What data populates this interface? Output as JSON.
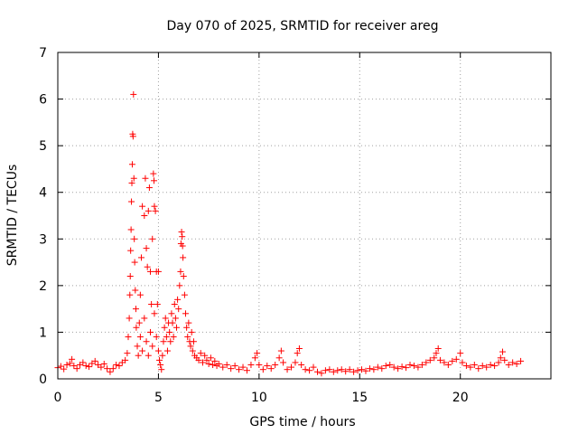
{
  "chart_data": {
    "type": "scatter",
    "title": "Day 070 of 2025, SRMTID for receiver areg",
    "xlabel": "GPS time / hours",
    "ylabel": "SRMTID / TECUs",
    "xlim": [
      0,
      24.5
    ],
    "ylim": [
      0,
      7
    ],
    "x_ticks": [
      0,
      5,
      10,
      15,
      20
    ],
    "y_ticks": [
      0,
      1,
      2,
      3,
      4,
      5,
      6,
      7
    ],
    "grid": true,
    "marker": "+",
    "series": [
      {
        "name": "SRMTID",
        "color": "#ff0000",
        "points": [
          [
            0.0,
            0.24
          ],
          [
            0.15,
            0.27
          ],
          [
            0.3,
            0.21
          ],
          [
            0.45,
            0.3
          ],
          [
            0.6,
            0.33
          ],
          [
            0.7,
            0.42
          ],
          [
            0.8,
            0.28
          ],
          [
            0.95,
            0.22
          ],
          [
            1.1,
            0.3
          ],
          [
            1.25,
            0.35
          ],
          [
            1.4,
            0.28
          ],
          [
            1.55,
            0.26
          ],
          [
            1.7,
            0.33
          ],
          [
            1.85,
            0.38
          ],
          [
            2.0,
            0.3
          ],
          [
            2.15,
            0.25
          ],
          [
            2.3,
            0.32
          ],
          [
            2.45,
            0.22
          ],
          [
            2.6,
            0.15
          ],
          [
            2.75,
            0.22
          ],
          [
            2.9,
            0.3
          ],
          [
            3.05,
            0.28
          ],
          [
            3.2,
            0.35
          ],
          [
            3.35,
            0.4
          ],
          [
            3.45,
            0.55
          ],
          [
            3.5,
            0.9
          ],
          [
            3.55,
            1.3
          ],
          [
            3.58,
            1.8
          ],
          [
            3.6,
            2.2
          ],
          [
            3.62,
            2.75
          ],
          [
            3.64,
            3.2
          ],
          [
            3.66,
            3.8
          ],
          [
            3.68,
            4.2
          ],
          [
            3.7,
            4.6
          ],
          [
            3.72,
            5.25
          ],
          [
            3.74,
            5.2
          ],
          [
            3.76,
            6.1
          ],
          [
            3.78,
            4.3
          ],
          [
            3.8,
            3.0
          ],
          [
            3.82,
            2.5
          ],
          [
            3.85,
            1.9
          ],
          [
            3.88,
            1.5
          ],
          [
            3.9,
            1.1
          ],
          [
            3.95,
            0.7
          ],
          [
            4.0,
            0.5
          ],
          [
            4.05,
            1.2
          ],
          [
            4.1,
            1.8
          ],
          [
            4.15,
            2.6
          ],
          [
            4.2,
            3.7
          ],
          [
            4.3,
            3.5
          ],
          [
            4.35,
            4.3
          ],
          [
            4.4,
            2.8
          ],
          [
            4.45,
            2.4
          ],
          [
            4.5,
            3.6
          ],
          [
            4.55,
            4.1
          ],
          [
            4.6,
            2.3
          ],
          [
            4.65,
            1.6
          ],
          [
            4.7,
            3.0
          ],
          [
            4.75,
            4.4
          ],
          [
            4.78,
            4.25
          ],
          [
            4.8,
            3.7
          ],
          [
            4.85,
            3.6
          ],
          [
            4.9,
            2.3
          ],
          [
            4.95,
            1.6
          ],
          [
            5.0,
            2.3
          ],
          [
            4.1,
            0.9
          ],
          [
            4.2,
            0.6
          ],
          [
            4.3,
            1.3
          ],
          [
            4.4,
            0.8
          ],
          [
            4.5,
            0.5
          ],
          [
            4.6,
            1.0
          ],
          [
            4.7,
            0.7
          ],
          [
            4.8,
            1.4
          ],
          [
            4.9,
            0.9
          ],
          [
            5.0,
            0.6
          ],
          [
            5.05,
            0.4
          ],
          [
            5.1,
            0.3
          ],
          [
            5.15,
            0.2
          ],
          [
            5.2,
            0.5
          ],
          [
            5.25,
            0.8
          ],
          [
            5.3,
            1.1
          ],
          [
            5.35,
            1.3
          ],
          [
            5.4,
            0.9
          ],
          [
            5.45,
            0.6
          ],
          [
            5.5,
            1.2
          ],
          [
            5.55,
            1.0
          ],
          [
            5.6,
            0.8
          ],
          [
            5.65,
            1.4
          ],
          [
            5.7,
            1.2
          ],
          [
            5.75,
            0.9
          ],
          [
            5.8,
            1.6
          ],
          [
            5.85,
            1.3
          ],
          [
            5.9,
            1.1
          ],
          [
            5.95,
            1.7
          ],
          [
            6.0,
            1.5
          ],
          [
            6.05,
            2.0
          ],
          [
            6.1,
            2.3
          ],
          [
            6.12,
            2.9
          ],
          [
            6.15,
            3.15
          ],
          [
            6.18,
            3.05
          ],
          [
            6.2,
            2.85
          ],
          [
            6.22,
            2.6
          ],
          [
            6.25,
            2.2
          ],
          [
            6.3,
            1.8
          ],
          [
            6.35,
            1.4
          ],
          [
            6.4,
            1.1
          ],
          [
            6.45,
            0.9
          ],
          [
            6.5,
            1.2
          ],
          [
            6.55,
            0.8
          ],
          [
            6.6,
            0.7
          ],
          [
            6.65,
            1.0
          ],
          [
            6.7,
            0.6
          ],
          [
            6.75,
            0.8
          ],
          [
            6.8,
            0.5
          ],
          [
            6.9,
            0.45
          ],
          [
            7.0,
            0.4
          ],
          [
            7.1,
            0.55
          ],
          [
            7.2,
            0.35
          ],
          [
            7.3,
            0.5
          ],
          [
            7.4,
            0.4
          ],
          [
            7.5,
            0.32
          ],
          [
            7.6,
            0.45
          ],
          [
            7.7,
            0.3
          ],
          [
            7.8,
            0.38
          ],
          [
            7.9,
            0.28
          ],
          [
            8.0,
            0.32
          ],
          [
            8.2,
            0.25
          ],
          [
            8.4,
            0.3
          ],
          [
            8.6,
            0.22
          ],
          [
            8.8,
            0.28
          ],
          [
            9.0,
            0.2
          ],
          [
            9.2,
            0.25
          ],
          [
            9.4,
            0.18
          ],
          [
            9.6,
            0.3
          ],
          [
            9.8,
            0.45
          ],
          [
            9.9,
            0.55
          ],
          [
            10.0,
            0.3
          ],
          [
            10.2,
            0.2
          ],
          [
            10.4,
            0.28
          ],
          [
            10.6,
            0.22
          ],
          [
            10.8,
            0.3
          ],
          [
            11.0,
            0.45
          ],
          [
            11.1,
            0.6
          ],
          [
            11.2,
            0.35
          ],
          [
            11.4,
            0.2
          ],
          [
            11.6,
            0.25
          ],
          [
            11.8,
            0.35
          ],
          [
            11.9,
            0.55
          ],
          [
            12.0,
            0.65
          ],
          [
            12.1,
            0.3
          ],
          [
            12.3,
            0.2
          ],
          [
            12.5,
            0.18
          ],
          [
            12.7,
            0.25
          ],
          [
            12.9,
            0.15
          ],
          [
            13.1,
            0.12
          ],
          [
            13.3,
            0.18
          ],
          [
            13.5,
            0.2
          ],
          [
            13.7,
            0.15
          ],
          [
            13.9,
            0.18
          ],
          [
            14.1,
            0.2
          ],
          [
            14.3,
            0.16
          ],
          [
            14.5,
            0.2
          ],
          [
            14.7,
            0.15
          ],
          [
            14.9,
            0.18
          ],
          [
            15.1,
            0.2
          ],
          [
            15.3,
            0.17
          ],
          [
            15.5,
            0.22
          ],
          [
            15.7,
            0.2
          ],
          [
            15.9,
            0.25
          ],
          [
            16.1,
            0.22
          ],
          [
            16.3,
            0.28
          ],
          [
            16.5,
            0.3
          ],
          [
            16.7,
            0.25
          ],
          [
            16.9,
            0.22
          ],
          [
            17.1,
            0.26
          ],
          [
            17.3,
            0.24
          ],
          [
            17.5,
            0.3
          ],
          [
            17.7,
            0.28
          ],
          [
            17.9,
            0.25
          ],
          [
            18.1,
            0.3
          ],
          [
            18.3,
            0.35
          ],
          [
            18.5,
            0.4
          ],
          [
            18.7,
            0.45
          ],
          [
            18.8,
            0.55
          ],
          [
            18.9,
            0.65
          ],
          [
            19.0,
            0.4
          ],
          [
            19.2,
            0.35
          ],
          [
            19.4,
            0.3
          ],
          [
            19.6,
            0.38
          ],
          [
            19.8,
            0.42
          ],
          [
            20.0,
            0.55
          ],
          [
            20.1,
            0.35
          ],
          [
            20.3,
            0.28
          ],
          [
            20.5,
            0.25
          ],
          [
            20.7,
            0.3
          ],
          [
            20.9,
            0.22
          ],
          [
            21.1,
            0.28
          ],
          [
            21.3,
            0.25
          ],
          [
            21.5,
            0.3
          ],
          [
            21.7,
            0.28
          ],
          [
            21.9,
            0.35
          ],
          [
            22.0,
            0.45
          ],
          [
            22.1,
            0.58
          ],
          [
            22.2,
            0.4
          ],
          [
            22.4,
            0.3
          ],
          [
            22.6,
            0.35
          ],
          [
            22.8,
            0.32
          ],
          [
            23.0,
            0.38
          ]
        ]
      }
    ]
  }
}
